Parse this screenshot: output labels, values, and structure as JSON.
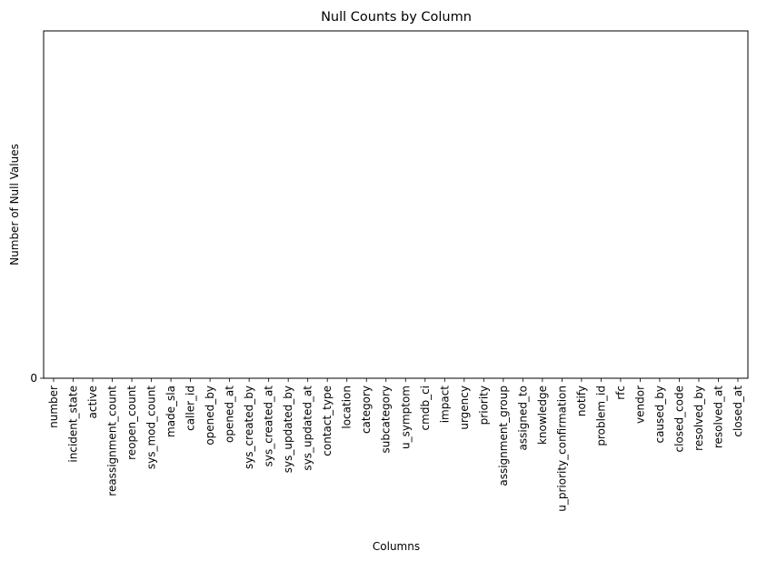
{
  "chart_data": {
    "type": "bar",
    "title": "Null Counts by Column",
    "xlabel": "Columns",
    "ylabel": "Number of Null Values",
    "categories": [
      "number",
      "incident_state",
      "active",
      "reassignment_count",
      "reopen_count",
      "sys_mod_count",
      "made_sla",
      "caller_id",
      "opened_by",
      "opened_at",
      "sys_created_by",
      "sys_created_at",
      "sys_updated_by",
      "sys_updated_at",
      "contact_type",
      "location",
      "category",
      "subcategory",
      "u_symptom",
      "cmdb_ci",
      "impact",
      "urgency",
      "priority",
      "assignment_group",
      "assigned_to",
      "knowledge",
      "u_priority_confirmation",
      "notify",
      "problem_id",
      "rfc",
      "vendor",
      "caused_by",
      "closed_code",
      "resolved_by",
      "resolved_at",
      "closed_at"
    ],
    "values": [
      0,
      0,
      0,
      0,
      0,
      0,
      0,
      0,
      0,
      0,
      0,
      0,
      0,
      0,
      0,
      0,
      0,
      0,
      0,
      0,
      0,
      0,
      0,
      0,
      0,
      0,
      0,
      0,
      0,
      0,
      0,
      0,
      0,
      0,
      0,
      0
    ],
    "yticks": [
      0
    ],
    "ylim": [
      0,
      1
    ],
    "grid": false,
    "legend": "none",
    "colors": {
      "bar": "#1f77b4",
      "axis": "#000000"
    }
  }
}
